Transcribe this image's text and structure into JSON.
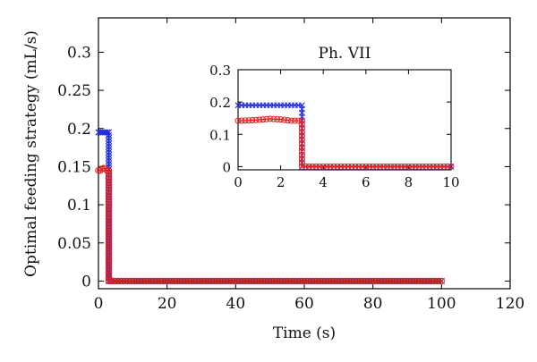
{
  "chart_data": [
    {
      "type": "scatter",
      "xlabel": "Time (s)",
      "ylabel": "Optimal feeding strategy (mL/s)",
      "xlim": [
        0,
        120
      ],
      "ylim": [
        -0.01,
        0.345
      ],
      "xticks": [
        "0",
        "20",
        "40",
        "60",
        "80",
        "100",
        "120"
      ],
      "yticks": [
        "0",
        "0.05",
        "0.1",
        "0.15",
        "0.2",
        "0.25",
        "0.3"
      ],
      "grid": false,
      "series": [
        {
          "color": "#1f2bd6",
          "marker": "x",
          "x": [
            0,
            0.5,
            1,
            1.5,
            2,
            2.5,
            3,
            3,
            3.5,
            4,
            10,
            20,
            30,
            40,
            50,
            60,
            70,
            80,
            90,
            100
          ],
          "y": [
            0.195,
            0.195,
            0.195,
            0.195,
            0.195,
            0.195,
            0.195,
            0,
            0,
            0,
            0,
            0,
            0,
            0,
            0,
            0,
            0,
            0,
            0,
            0
          ]
        },
        {
          "color": "#e02020",
          "marker": "o",
          "x": [
            0,
            0.5,
            1,
            1.5,
            2,
            2.5,
            3,
            3,
            3.5,
            4,
            10,
            20,
            30,
            40,
            50,
            60,
            70,
            80,
            90,
            100
          ],
          "y": [
            0.145,
            0.145,
            0.147,
            0.148,
            0.147,
            0.145,
            0.145,
            0,
            0,
            0,
            0,
            0,
            0,
            0,
            0,
            0,
            0,
            0,
            0,
            0
          ]
        }
      ]
    },
    {
      "type": "scatter",
      "title": "Ph. VII",
      "xlim": [
        0,
        10
      ],
      "ylim": [
        -0.01,
        0.3
      ],
      "xticks": [
        "0",
        "2",
        "4",
        "6",
        "8",
        "10"
      ],
      "yticks": [
        "0",
        "0.1",
        "0.2",
        "0.3"
      ],
      "grid": false,
      "series": [
        {
          "color": "#1f2bd6",
          "marker": "x",
          "x": [
            0,
            0.5,
            1,
            1.5,
            2,
            2.5,
            3,
            3,
            4,
            5,
            6,
            7,
            8,
            9,
            10
          ],
          "y": [
            0.19,
            0.19,
            0.19,
            0.19,
            0.19,
            0.19,
            0.19,
            0,
            0,
            0,
            0,
            0,
            0,
            0,
            0
          ]
        },
        {
          "color": "#e02020",
          "marker": "o",
          "x": [
            0,
            0.5,
            1,
            1.5,
            2,
            2.5,
            3,
            3,
            4,
            5,
            6,
            7,
            8,
            9,
            10
          ],
          "y": [
            0.142,
            0.143,
            0.145,
            0.148,
            0.146,
            0.142,
            0.142,
            0,
            0,
            0,
            0,
            0,
            0,
            0,
            0
          ]
        }
      ]
    }
  ]
}
